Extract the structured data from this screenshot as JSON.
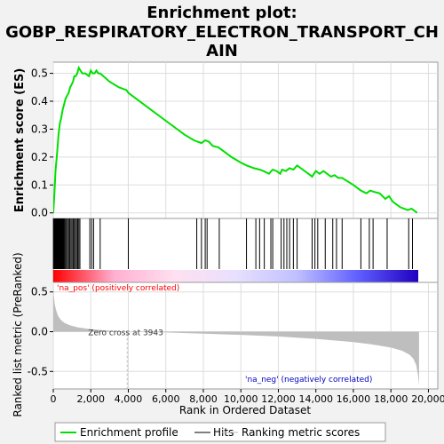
{
  "title_line1": "Enrichment plot:",
  "title_line2": "GOBP_RESPIRATORY_ELECTRON_TRANSPORT_CH",
  "title_line3": "AIN",
  "colors": {
    "background": "#f2f2f2",
    "enrichment_line": "#00e000",
    "hits": "#000000",
    "metric_fill": "#bebebe",
    "pos_label": "#ff0000",
    "neg_label": "#0000c0",
    "zero_cross_line": "#bebebe"
  },
  "chart_data": {
    "type": "line",
    "x_range": [
      0,
      20500
    ],
    "x_ticks": [
      0,
      2000,
      4000,
      6000,
      8000,
      10000,
      12000,
      14000,
      16000,
      18000,
      20000
    ],
    "x_tick_labels": [
      "0",
      "2,000",
      "4,000",
      "6,000",
      "8,000",
      "10,000",
      "12,000",
      "14,000",
      "16,000",
      "18,000",
      "20,000"
    ],
    "xlabel": "Rank in Ordered Dataset",
    "es_panel": {
      "ylabel": "Enrichment score (ES)",
      "ylim": [
        -0.02,
        0.54
      ],
      "y_ticks": [
        0.0,
        0.1,
        0.2,
        0.3,
        0.4,
        0.5
      ],
      "y_tick_labels": [
        "0.0",
        "0.1",
        "0.2",
        "0.3",
        "0.4",
        "0.5"
      ],
      "grid": true,
      "series": [
        {
          "name": "Enrichment profile",
          "x": [
            0,
            60,
            120,
            200,
            280,
            350,
            420,
            500,
            580,
            660,
            740,
            820,
            900,
            980,
            1050,
            1120,
            1200,
            1280,
            1360,
            1450,
            1550,
            1700,
            1900,
            2000,
            2100,
            2200,
            2300,
            2400,
            2500,
            3000,
            3500,
            3900,
            4000,
            4200,
            5000,
            6000,
            7000,
            7500,
            7700,
            7900,
            8100,
            8300,
            8500,
            8800,
            9500,
            10000,
            10300,
            10700,
            11000,
            11200,
            11500,
            11700,
            11900,
            12100,
            12200,
            12400,
            12600,
            12800,
            13000,
            13300,
            13600,
            13800,
            14000,
            14200,
            14400,
            14600,
            14800,
            15000,
            15200,
            15400,
            16000,
            16400,
            16700,
            16900,
            17100,
            17400,
            17700,
            17900,
            18100,
            18500,
            18900,
            19100,
            19300,
            19400
          ],
          "y": [
            0.0,
            0.07,
            0.15,
            0.21,
            0.28,
            0.32,
            0.34,
            0.37,
            0.39,
            0.41,
            0.42,
            0.43,
            0.45,
            0.46,
            0.47,
            0.49,
            0.49,
            0.5,
            0.52,
            0.51,
            0.5,
            0.5,
            0.49,
            0.51,
            0.5,
            0.5,
            0.51,
            0.5,
            0.5,
            0.47,
            0.45,
            0.44,
            0.43,
            0.42,
            0.38,
            0.33,
            0.28,
            0.26,
            0.255,
            0.25,
            0.26,
            0.255,
            0.24,
            0.235,
            0.2,
            0.18,
            0.17,
            0.16,
            0.155,
            0.15,
            0.14,
            0.155,
            0.15,
            0.14,
            0.155,
            0.15,
            0.16,
            0.155,
            0.17,
            0.155,
            0.14,
            0.13,
            0.15,
            0.14,
            0.15,
            0.14,
            0.13,
            0.135,
            0.125,
            0.125,
            0.1,
            0.08,
            0.07,
            0.08,
            0.075,
            0.07,
            0.05,
            0.06,
            0.04,
            0.02,
            0.01,
            0.015,
            0.005,
            0.0
          ]
        }
      ]
    },
    "hits_panel": {
      "series_name": "Hits",
      "hit_positions": [
        10,
        30,
        50,
        70,
        90,
        110,
        130,
        150,
        170,
        190,
        220,
        250,
        280,
        310,
        340,
        370,
        400,
        430,
        460,
        490,
        520,
        560,
        600,
        650,
        700,
        760,
        820,
        880,
        940,
        1000,
        1060,
        1120,
        1180,
        1240,
        1300,
        1360,
        1420,
        1950,
        2050,
        2150,
        2500,
        4000,
        7650,
        7900,
        8100,
        8200,
        8850,
        10300,
        10800,
        11000,
        11250,
        11600,
        11700,
        12150,
        12300,
        12450,
        12600,
        12800,
        13000,
        13800,
        13950,
        14100,
        14500,
        14900,
        15100,
        15400,
        16400,
        16850,
        17050,
        17800,
        18950,
        19150
      ]
    },
    "heat_bar": {
      "gradient": [
        "#ff0000",
        "#ffb0d0",
        "#ffe0f0",
        "#e8e0ff",
        "#c0c0ff",
        "#6060ff",
        "#2000c0"
      ]
    },
    "metric_panel": {
      "series_name": "Ranking metric scores",
      "ylabel": "Ranked list metric (PreRanked)",
      "ylim": [
        -0.72,
        0.62
      ],
      "y_ticks": [
        0.5,
        0.0,
        -0.5
      ],
      "y_tick_labels": [
        "0.5",
        "0.0",
        "-0.5"
      ],
      "metric_curve": {
        "x": [
          0,
          30,
          80,
          150,
          250,
          400,
          600,
          900,
          1300,
          2000,
          3000,
          3943,
          6000,
          8000,
          10000,
          12000,
          14000,
          16000,
          17000,
          18000,
          18600,
          19000,
          19200,
          19350,
          19450,
          19500
        ],
        "y": [
          0.6,
          0.45,
          0.34,
          0.27,
          0.2,
          0.15,
          0.11,
          0.08,
          0.055,
          0.03,
          0.012,
          0.0,
          -0.01,
          -0.025,
          -0.04,
          -0.06,
          -0.09,
          -0.13,
          -0.16,
          -0.2,
          -0.24,
          -0.29,
          -0.34,
          -0.42,
          -0.55,
          -0.68
        ]
      },
      "zero_cross_x": 3943,
      "zero_cross_label": "Zero cross at 3943",
      "pos_label": "'na_pos' (positively correlated)",
      "neg_label": "'na_neg' (negatively correlated)"
    },
    "legend": {
      "placement": "bottom",
      "items": [
        {
          "label": "Enrichment profile",
          "color": "#00e000"
        },
        {
          "label": "Hits",
          "color": "#000000"
        },
        {
          "label": "Ranking metric scores",
          "color": "#bebebe"
        }
      ]
    }
  }
}
